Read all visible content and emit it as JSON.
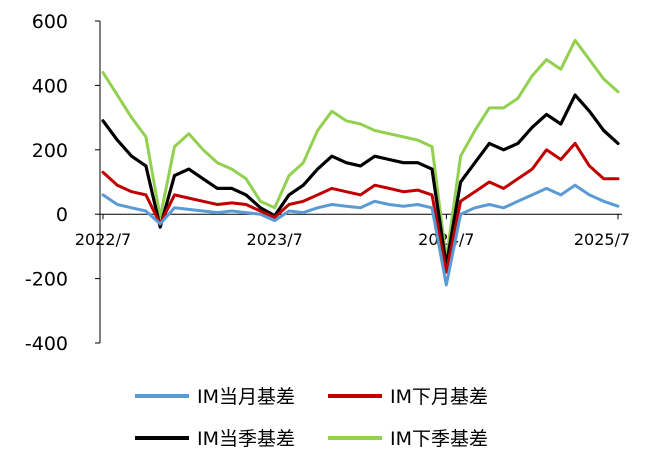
{
  "chart_data": {
    "type": "line",
    "title": "",
    "xlabel": "",
    "ylabel": "",
    "ylim": [
      -400,
      600
    ],
    "yticks": [
      "-400",
      "-200",
      "0",
      "200",
      "400",
      "600"
    ],
    "xtick_labels": [
      "2022/7",
      "2023/7",
      "2024/7",
      "2025/7"
    ],
    "xtick_positions": [
      "2022-07",
      "2023-07",
      "2024-07",
      "2025-07"
    ],
    "x_range": [
      "2022-07",
      "2025-07"
    ],
    "grid": false,
    "legend_position": "bottom",
    "x": [
      "2022-07",
      "2022-08",
      "2022-09",
      "2022-10",
      "2022-11",
      "2022-12",
      "2023-01",
      "2023-02",
      "2023-03",
      "2023-04",
      "2023-05",
      "2023-06",
      "2023-07",
      "2023-08",
      "2023-09",
      "2023-10",
      "2023-11",
      "2023-12",
      "2024-01",
      "2024-02",
      "2024-03",
      "2024-04",
      "2024-05",
      "2024-06",
      "2024-07",
      "2024-08",
      "2024-09",
      "2024-10",
      "2024-11",
      "2024-12",
      "2025-01",
      "2025-02",
      "2025-03",
      "2025-04",
      "2025-05",
      "2025-06",
      "2025-07"
    ],
    "series": [
      {
        "name": "IM当月基差",
        "color": "#5B9BD5",
        "values": [
          60,
          30,
          20,
          10,
          -30,
          20,
          15,
          10,
          5,
          10,
          5,
          0,
          -20,
          10,
          5,
          20,
          30,
          25,
          20,
          40,
          30,
          25,
          30,
          20,
          -220,
          0,
          20,
          30,
          20,
          40,
          60,
          80,
          60,
          90,
          60,
          40,
          25
        ]
      },
      {
        "name": "IM下月基差",
        "color": "#C00000",
        "values": [
          130,
          90,
          70,
          60,
          -30,
          60,
          50,
          40,
          30,
          35,
          30,
          10,
          -10,
          30,
          40,
          60,
          80,
          70,
          60,
          90,
          80,
          70,
          75,
          60,
          -180,
          40,
          70,
          100,
          80,
          110,
          140,
          200,
          170,
          220,
          150,
          110,
          110
        ]
      },
      {
        "name": "IM当季基差",
        "color": "#000000",
        "values": [
          290,
          230,
          180,
          150,
          -40,
          120,
          140,
          110,
          80,
          80,
          60,
          20,
          -5,
          60,
          90,
          140,
          180,
          160,
          150,
          180,
          170,
          160,
          160,
          140,
          -160,
          100,
          160,
          220,
          200,
          220,
          270,
          310,
          280,
          370,
          320,
          260,
          220
        ]
      },
      {
        "name": "IM下季基差",
        "color": "#92D050",
        "values": [
          440,
          370,
          300,
          240,
          -10,
          210,
          250,
          200,
          160,
          140,
          110,
          40,
          20,
          120,
          160,
          260,
          320,
          290,
          280,
          260,
          250,
          240,
          230,
          210,
          -140,
          180,
          260,
          330,
          330,
          360,
          430,
          480,
          450,
          540,
          480,
          420,
          380
        ]
      }
    ]
  }
}
